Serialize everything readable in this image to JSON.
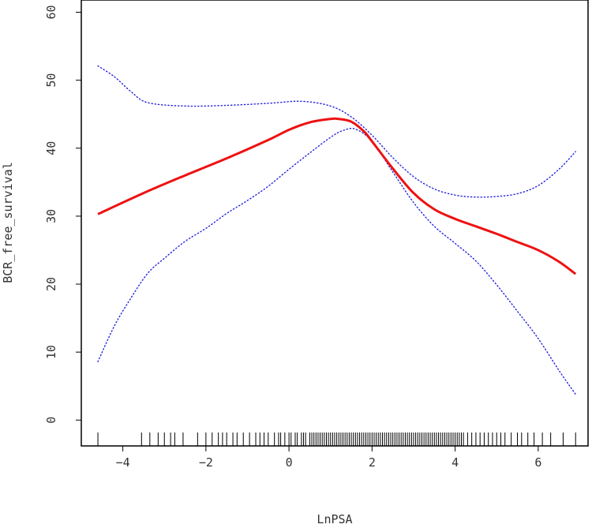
{
  "chart_data": {
    "type": "line",
    "title": "",
    "xlabel": "LnPSA",
    "ylabel": "BCR_free_survival",
    "xlim": [
      -5.0,
      7.2
    ],
    "ylim": [
      -3.8,
      61.8
    ],
    "xticks": [
      -4,
      -2,
      0,
      2,
      4,
      6
    ],
    "yticks": [
      0,
      10,
      20,
      30,
      40,
      50,
      60
    ],
    "grid": false,
    "legend": "none",
    "series": [
      {
        "role": "fit",
        "color": "#ee1111",
        "style": "solid",
        "x": [
          -4.6,
          -3.5,
          -2.5,
          -1.5,
          -0.5,
          0.0,
          0.5,
          1.0,
          1.2,
          1.5,
          1.8,
          2.0,
          2.5,
          3.0,
          3.5,
          4.0,
          4.5,
          5.0,
          5.5,
          6.0,
          6.5,
          6.9
        ],
        "y": [
          30.3,
          33.4,
          36.0,
          38.5,
          41.2,
          42.7,
          43.8,
          44.3,
          44.3,
          43.9,
          42.5,
          41.0,
          37.0,
          33.4,
          31.0,
          29.6,
          28.5,
          27.4,
          26.2,
          25.0,
          23.3,
          21.5
        ]
      },
      {
        "role": "upper-ci",
        "color": "#2222dd",
        "style": "dotted",
        "x": [
          -4.6,
          -4.2,
          -3.8,
          -3.4,
          -2.5,
          -1.5,
          -0.5,
          0.3,
          1.0,
          1.5,
          2.0,
          2.5,
          3.0,
          3.5,
          4.0,
          4.5,
          5.0,
          5.5,
          6.0,
          6.5,
          6.9
        ],
        "y": [
          52.1,
          50.5,
          48.3,
          46.7,
          46.2,
          46.3,
          46.6,
          46.9,
          46.2,
          44.6,
          41.9,
          38.6,
          35.8,
          34.0,
          33.1,
          32.8,
          32.9,
          33.3,
          34.5,
          36.9,
          39.5
        ]
      },
      {
        "role": "lower-ci",
        "color": "#2222dd",
        "style": "dotted",
        "x": [
          -4.6,
          -4.2,
          -3.8,
          -3.4,
          -3.0,
          -2.5,
          -2.0,
          -1.5,
          -1.0,
          -0.5,
          0.0,
          0.5,
          1.0,
          1.3,
          1.6,
          2.0,
          2.5,
          3.0,
          3.5,
          4.0,
          4.5,
          5.0,
          5.5,
          6.0,
          6.5,
          6.9
        ],
        "y": [
          8.6,
          13.9,
          18.0,
          21.6,
          23.8,
          26.3,
          28.2,
          30.4,
          32.3,
          34.4,
          36.9,
          39.3,
          41.6,
          42.6,
          42.8,
          41.0,
          36.5,
          32.0,
          28.5,
          26.0,
          23.4,
          19.9,
          16.0,
          12.0,
          7.3,
          3.8
        ]
      }
    ],
    "rug": [
      -4.6,
      -3.55,
      -3.35,
      -3.15,
      -3.0,
      -2.85,
      -2.75,
      -2.55,
      -2.2,
      -2.0,
      -1.85,
      -1.7,
      -1.6,
      -1.5,
      -1.35,
      -1.25,
      -1.1,
      -0.95,
      -0.8,
      -0.7,
      -0.6,
      -0.5,
      -0.35,
      -0.25,
      -0.2,
      -0.1,
      0.0,
      0.05,
      0.15,
      0.2,
      0.3,
      0.35,
      0.4,
      0.5,
      0.55,
      0.6,
      0.65,
      0.7,
      0.75,
      0.8,
      0.85,
      0.9,
      0.95,
      1.0,
      1.05,
      1.1,
      1.15,
      1.2,
      1.25,
      1.3,
      1.35,
      1.4,
      1.45,
      1.5,
      1.55,
      1.6,
      1.65,
      1.7,
      1.75,
      1.8,
      1.85,
      1.9,
      1.95,
      2.0,
      2.05,
      2.1,
      2.15,
      2.2,
      2.25,
      2.3,
      2.35,
      2.4,
      2.45,
      2.5,
      2.55,
      2.6,
      2.65,
      2.7,
      2.75,
      2.8,
      2.85,
      2.9,
      2.95,
      3.0,
      3.05,
      3.1,
      3.15,
      3.2,
      3.25,
      3.3,
      3.35,
      3.4,
      3.45,
      3.5,
      3.55,
      3.6,
      3.65,
      3.7,
      3.75,
      3.8,
      3.85,
      3.9,
      3.95,
      4.0,
      4.05,
      4.1,
      4.15,
      4.2,
      4.3,
      4.4,
      4.5,
      4.6,
      4.7,
      4.8,
      4.9,
      5.0,
      5.1,
      5.2,
      5.35,
      5.5,
      5.6,
      5.75,
      5.9,
      6.1,
      6.3,
      6.6,
      6.9
    ]
  }
}
